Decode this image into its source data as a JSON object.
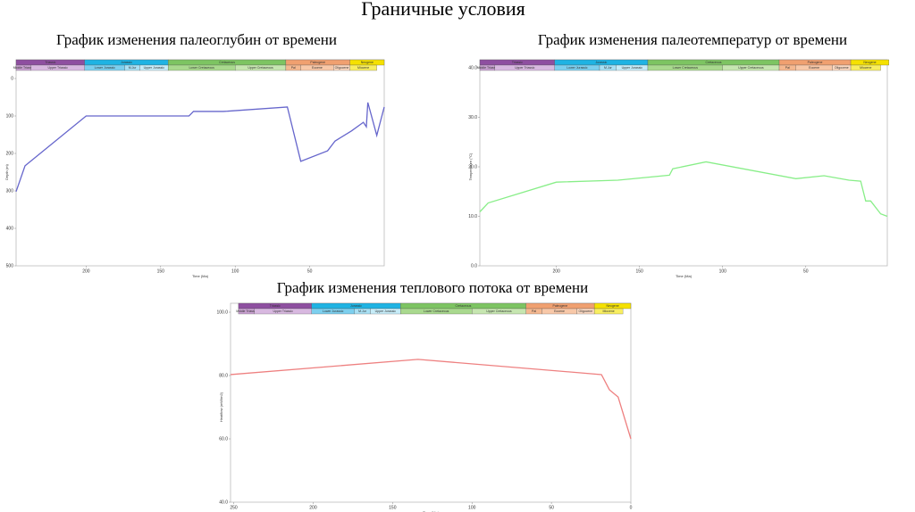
{
  "title": "Граничные условия",
  "time_scale": {
    "periods": [
      {
        "name": "Triassic",
        "from": 247,
        "to": 201,
        "color": "#8e4fa0"
      },
      {
        "name": "Jurassic",
        "from": 201,
        "to": 145,
        "color": "#1fb3e3"
      },
      {
        "name": "Cretaceous",
        "from": 145,
        "to": 66,
        "color": "#7dc462"
      },
      {
        "name": "Paleogene",
        "from": 66,
        "to": 23,
        "color": "#f0a070"
      },
      {
        "name": "Neogene",
        "from": 23,
        "to": 0,
        "color": "#f5e100"
      }
    ],
    "epochs": [
      {
        "name": "Middle Triassic",
        "from": 247,
        "to": 237,
        "color": "#c8a0d0"
      },
      {
        "name": "Upper Triassic",
        "from": 237,
        "to": 201,
        "color": "#d8b8e0"
      },
      {
        "name": "Lower Jurassic",
        "from": 201,
        "to": 174,
        "color": "#7ccfee"
      },
      {
        "name": "M.Jur",
        "from": 174,
        "to": 164,
        "color": "#a8e0f4"
      },
      {
        "name": "Upper Jurassic",
        "from": 164,
        "to": 145,
        "color": "#c6ecf8"
      },
      {
        "name": "Lower Cretaceous",
        "from": 145,
        "to": 100,
        "color": "#a9d98e"
      },
      {
        "name": "Upper Cretaceous",
        "from": 100,
        "to": 66,
        "color": "#c6e6b0"
      },
      {
        "name": "Pal",
        "from": 66,
        "to": 56,
        "color": "#f5b890"
      },
      {
        "name": "Eocene",
        "from": 56,
        "to": 34,
        "color": "#f8c8a8"
      },
      {
        "name": "Oligocene",
        "from": 34,
        "to": 23,
        "color": "#fbd8c0"
      },
      {
        "name": "Miocene",
        "from": 23,
        "to": 5,
        "color": "#f8ee60"
      }
    ]
  },
  "chart_data": [
    {
      "type": "line",
      "title": "График изменения палеоглубин от времени",
      "x_label": "Time (Ma)",
      "y_label": "Depth (m)",
      "xlim": [
        247,
        0
      ],
      "ylim": [
        500,
        0
      ],
      "xticks": [
        200,
        150,
        100,
        50
      ],
      "yticks": [
        0,
        100,
        200,
        300,
        400,
        500
      ],
      "color": "#6666cc",
      "x": [
        247,
        241,
        200,
        131,
        128,
        108,
        65,
        56,
        38,
        33,
        22,
        14,
        12,
        11,
        5,
        0
      ],
      "values": [
        302,
        233,
        100,
        100,
        88,
        88,
        76,
        221,
        193,
        167,
        140,
        117,
        129,
        64,
        152,
        76
      ]
    },
    {
      "type": "line",
      "title": "График изменения палеотемператур от времени",
      "x_label": "Time (Ma)",
      "y_label": "Temperature (°C)",
      "xlim": [
        246,
        1
      ],
      "ylim": [
        0,
        40
      ],
      "xticks": [
        200,
        150,
        100,
        50
      ],
      "yticks": [
        {
          "value": 0,
          "label": "0.0"
        },
        {
          "value": 10,
          "label": "10.0"
        },
        {
          "value": 20,
          "label": "20.0"
        },
        {
          "value": 30,
          "label": "30.0"
        },
        {
          "value": 40,
          "label": "40.0"
        }
      ],
      "color": "#88ee88",
      "x": [
        246,
        241,
        200,
        163,
        132,
        130,
        110,
        56,
        39,
        24,
        17,
        14,
        11,
        5,
        1
      ],
      "values": [
        10.9,
        12.7,
        16.9,
        17.3,
        18.3,
        19.6,
        21.0,
        17.6,
        18.2,
        17.3,
        17.1,
        13.1,
        13.1,
        10.5,
        10.0
      ]
    },
    {
      "type": "line",
      "title": "График изменения теплового потока от времени",
      "x_label": "Time (Ma)",
      "y_label": "Heatflow (mW/m2)",
      "xlim": [
        252,
        0
      ],
      "ylim": [
        40,
        100
      ],
      "xticks": [
        250,
        200,
        150,
        100,
        50,
        0
      ],
      "yticks": [
        {
          "value": 40,
          "label": "40.0"
        },
        {
          "value": 60,
          "label": "60.0"
        },
        {
          "value": 80,
          "label": "80.0"
        },
        {
          "value": 100,
          "label": "100.0"
        }
      ],
      "color": "#ee8080",
      "x": [
        252,
        134,
        18.5,
        13.5,
        8,
        0
      ],
      "values": [
        80.3,
        85.1,
        80.3,
        75.5,
        73.2,
        60
      ]
    }
  ]
}
